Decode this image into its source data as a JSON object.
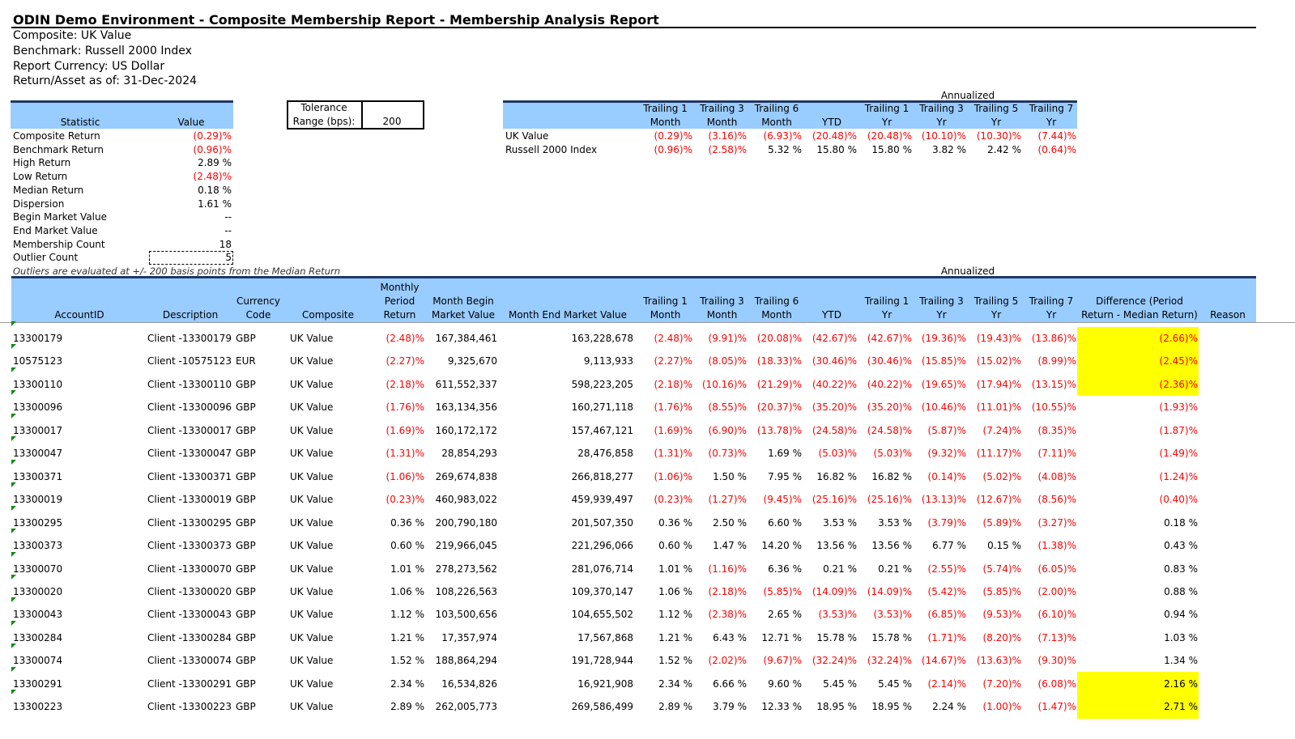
{
  "header": {
    "title": "ODIN Demo Environment - Composite Membership Report - Membership Analysis Report",
    "lines": [
      "Composite: UK Value",
      "Benchmark: Russell 2000 Index",
      "Report Currency: US Dollar",
      "Return/Asset as of: 31-Dec-2024"
    ]
  },
  "stats_table": {
    "headers": [
      "Statistic",
      "Value"
    ],
    "rows": [
      [
        "Composite Return",
        "(0.29)%"
      ],
      [
        "Benchmark Return",
        "(0.96)%"
      ],
      [
        "High Return",
        "2.89 %"
      ],
      [
        "Low Return",
        "(2.48)%"
      ],
      [
        "Median Return",
        "0.18 %"
      ],
      [
        "Dispersion",
        "1.61 %"
      ],
      [
        "Begin Market Value",
        "--"
      ],
      [
        "End Market Value",
        "--"
      ],
      [
        "Membership Count",
        "18"
      ],
      [
        "Outlier Count",
        "5"
      ]
    ]
  },
  "tolerance": {
    "label": "Tolerance Range (bps):",
    "value": "200"
  },
  "summary_table": {
    "group_label": "Annualized",
    "headers": [
      "Trailing 1\nMonth",
      "Trailing 3\nMonth",
      "Trailing 6\nMonth",
      "YTD",
      "Trailing 1\nYr",
      "Trailing 3\nYr",
      "Trailing 5\nYr",
      "Trailing 7\nYr"
    ],
    "rows": [
      [
        "UK Value",
        "(0.29)%",
        "(3.16)%",
        "(6.93)%",
        "(20.48)%",
        "(20.48)%",
        "(10.10)%",
        "(10.30)%",
        "(7.44)%"
      ],
      [
        "Russell 2000 Index",
        "(0.96)%",
        "(2.58)%",
        "5.32 %",
        "15.80 %",
        "15.80 %",
        "3.82 %",
        "2.42 %",
        "(0.64)%"
      ]
    ]
  },
  "note": "Outliers are evaluated at +/- 200 basis points from the Median Return",
  "main_table": {
    "group_label": "Annualized",
    "headers": [
      "AccountID",
      "Description",
      "Currency\nCode",
      "Composite",
      "Monthly\nPeriod\nReturn",
      "Month Begin\nMarket Value",
      "Month End Market Value",
      "Trailing 1\nMonth",
      "Trailing 3\nMonth",
      "Trailing 6\nMonth",
      "YTD",
      "Trailing 1\nYr",
      "Trailing 3\nYr",
      "Trailing 5\nYr",
      "Trailing 7\nYr",
      "Difference (Period\nReturn -  Median Return)",
      "Reason"
    ],
    "rows": [
      [
        "13300179",
        "Client -13300179",
        "GBP",
        "UK Value",
        "(2.48)%",
        "167,384,461",
        "163,228,678",
        "(2.48)%",
        "(9.91)%",
        "(20.08)%",
        "(42.67)%",
        "(42.67)%",
        "(19.36)%",
        "(19.43)%",
        "(13.86)%",
        "(2.66)%"
      ],
      [
        "10575123",
        "Client -10575123",
        "EUR",
        "UK Value",
        "(2.27)%",
        "9,325,670",
        "9,113,933",
        "(2.27)%",
        "(8.05)%",
        "(18.33)%",
        "(30.46)%",
        "(30.46)%",
        "(15.85)%",
        "(15.02)%",
        "(8.99)%",
        "(2.45)%"
      ],
      [
        "13300110",
        "Client -13300110",
        "GBP",
        "UK Value",
        "(2.18)%",
        "611,552,337",
        "598,223,205",
        "(2.18)%",
        "(10.16)%",
        "(21.29)%",
        "(40.22)%",
        "(40.22)%",
        "(19.65)%",
        "(17.94)%",
        "(13.15)%",
        "(2.36)%"
      ],
      [
        "13300096",
        "Client -13300096",
        "GBP",
        "UK Value",
        "(1.76)%",
        "163,134,356",
        "160,271,118",
        "(1.76)%",
        "(8.55)%",
        "(20.37)%",
        "(35.20)%",
        "(35.20)%",
        "(10.46)%",
        "(11.01)%",
        "(10.55)%",
        "(1.93)%"
      ],
      [
        "13300017",
        "Client -13300017",
        "GBP",
        "UK Value",
        "(1.69)%",
        "160,172,172",
        "157,467,121",
        "(1.69)%",
        "(6.90)%",
        "(13.78)%",
        "(24.58)%",
        "(24.58)%",
        "(5.87)%",
        "(7.24)%",
        "(8.35)%",
        "(1.87)%"
      ],
      [
        "13300047",
        "Client -13300047",
        "GBP",
        "UK Value",
        "(1.31)%",
        "28,854,293",
        "28,476,858",
        "(1.31)%",
        "(0.73)%",
        "1.69 %",
        "(5.03)%",
        "(5.03)%",
        "(9.32)%",
        "(11.17)%",
        "(7.11)%",
        "(1.49)%"
      ],
      [
        "13300371",
        "Client -13300371",
        "GBP",
        "UK Value",
        "(1.06)%",
        "269,674,838",
        "266,818,277",
        "(1.06)%",
        "1.50 %",
        "7.95 %",
        "16.82 %",
        "16.82 %",
        "(0.14)%",
        "(5.02)%",
        "(4.08)%",
        "(1.24)%"
      ],
      [
        "13300019",
        "Client -13300019",
        "GBP",
        "UK Value",
        "(0.23)%",
        "460,983,022",
        "459,939,497",
        "(0.23)%",
        "(1.27)%",
        "(9.45)%",
        "(25.16)%",
        "(25.16)%",
        "(13.13)%",
        "(12.67)%",
        "(8.56)%",
        "(0.40)%"
      ],
      [
        "13300295",
        "Client -13300295",
        "GBP",
        "UK Value",
        "0.36 %",
        "200,790,180",
        "201,507,350",
        "0.36 %",
        "2.50 %",
        "6.60 %",
        "3.53 %",
        "3.53 %",
        "(3.79)%",
        "(5.89)%",
        "(3.27)%",
        "0.18 %"
      ],
      [
        "13300373",
        "Client -13300373",
        "GBP",
        "UK Value",
        "0.60 %",
        "219,966,045",
        "221,296,066",
        "0.60 %",
        "1.47 %",
        "14.20 %",
        "13.56 %",
        "13.56 %",
        "6.77 %",
        "0.15 %",
        "(1.38)%",
        "0.43 %"
      ],
      [
        "13300070",
        "Client -13300070",
        "GBP",
        "UK Value",
        "1.01 %",
        "278,273,562",
        "281,076,714",
        "1.01 %",
        "(1.16)%",
        "6.36 %",
        "0.21 %",
        "0.21 %",
        "(2.55)%",
        "(5.74)%",
        "(6.05)%",
        "0.83 %"
      ],
      [
        "13300020",
        "Client -13300020",
        "GBP",
        "UK Value",
        "1.06 %",
        "108,226,563",
        "109,370,147",
        "1.06 %",
        "(2.18)%",
        "(5.85)%",
        "(14.09)%",
        "(14.09)%",
        "(5.42)%",
        "(5.85)%",
        "(2.00)%",
        "0.88 %"
      ],
      [
        "13300043",
        "Client -13300043",
        "GBP",
        "UK Value",
        "1.12 %",
        "103,500,656",
        "104,655,502",
        "1.12 %",
        "(2.38)%",
        "2.65 %",
        "(3.53)%",
        "(3.53)%",
        "(6.85)%",
        "(9.53)%",
        "(6.10)%",
        "0.94 %"
      ],
      [
        "13300284",
        "Client -13300284",
        "GBP",
        "UK Value",
        "1.21 %",
        "17,357,974",
        "17,567,868",
        "1.21 %",
        "6.43 %",
        "12.71 %",
        "15.78 %",
        "15.78 %",
        "(1.71)%",
        "(8.20)%",
        "(7.13)%",
        "1.03 %"
      ],
      [
        "13300074",
        "Client -13300074",
        "GBP",
        "UK Value",
        "1.52 %",
        "188,864,294",
        "191,728,944",
        "1.52 %",
        "(2.02)%",
        "(9.67)%",
        "(32.24)%",
        "(32.24)%",
        "(14.67)%",
        "(13.63)%",
        "(9.30)%",
        "1.34 %"
      ],
      [
        "13300291",
        "Client -13300291",
        "GBP",
        "UK Value",
        "2.34 %",
        "16,534,826",
        "16,921,908",
        "2.34 %",
        "6.66 %",
        "9.60 %",
        "5.45 %",
        "5.45 %",
        "(2.14)%",
        "(7.20)%",
        "(6.08)%",
        "2.16 %"
      ],
      [
        "13300223",
        "Client -13300223",
        "GBP",
        "UK Value",
        "2.89 %",
        "262,005,773",
        "269,586,499",
        "2.89 %",
        "3.79 %",
        "12.33 %",
        "18.95 %",
        "18.95 %",
        "2.24 %",
        "(1.00)%",
        "(1.47)%",
        "2.71 %"
      ]
    ]
  }
}
